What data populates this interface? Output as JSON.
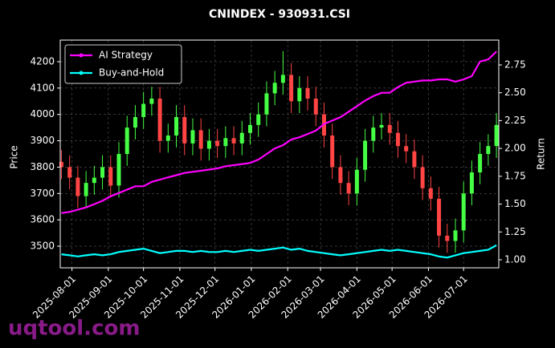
{
  "chart_data": {
    "type": "candlestick",
    "title": "CNINDEX - 930931.CSI",
    "ylabel": "Price",
    "y2label": "Return",
    "watermark": "uqtool.com",
    "up_color": "#44ff44",
    "down_color": "#ff4444",
    "grid": true,
    "legend": "upper left",
    "x": [
      "2025-07-23",
      "2025-07-30",
      "2025-08-06",
      "2025-08-13",
      "2025-08-20",
      "2025-08-27",
      "2025-09-03",
      "2025-09-10",
      "2025-09-17",
      "2025-09-24",
      "2025-10-01",
      "2025-10-08",
      "2025-10-15",
      "2025-10-22",
      "2025-10-29",
      "2025-11-05",
      "2025-11-12",
      "2025-11-19",
      "2025-11-26",
      "2025-12-03",
      "2025-12-10",
      "2025-12-17",
      "2025-12-24",
      "2025-12-31",
      "2026-01-07",
      "2026-01-14",
      "2026-01-21",
      "2026-01-28",
      "2026-02-04",
      "2026-02-11",
      "2026-02-18",
      "2026-02-25",
      "2026-03-04",
      "2026-03-11",
      "2026-03-18",
      "2026-03-25",
      "2026-04-01",
      "2026-04-08",
      "2026-04-15",
      "2026-04-22",
      "2026-04-29",
      "2026-05-06",
      "2026-05-13",
      "2026-05-20",
      "2026-05-27",
      "2026-06-03",
      "2026-06-10",
      "2026-06-17",
      "2026-06-24",
      "2026-07-01",
      "2026-07-08",
      "2026-07-15",
      "2026-07-22",
      "2026-07-29"
    ],
    "open": [
      3820,
      3800,
      3760,
      3690,
      3740,
      3760,
      3800,
      3730,
      3850,
      3950,
      3990,
      4040,
      4060,
      3900,
      3920,
      3990,
      3890,
      3940,
      3870,
      3900,
      3880,
      3910,
      3890,
      3930,
      3960,
      4000,
      4080,
      4120,
      4150,
      4050,
      4100,
      4060,
      4000,
      3920,
      3800,
      3740,
      3700,
      3790,
      3900,
      3950,
      3960,
      3930,
      3880,
      3860,
      3800,
      3720,
      3680,
      3540,
      3520,
      3560,
      3700,
      3780,
      3850,
      3880
    ],
    "high": [
      3865,
      3845,
      3805,
      3785,
      3805,
      3845,
      3845,
      3895,
      3995,
      4035,
      4085,
      4105,
      4105,
      3965,
      4035,
      4035,
      3985,
      3985,
      3945,
      3945,
      3955,
      3955,
      3975,
      4005,
      4045,
      4125,
      4165,
      4240,
      4195,
      4145,
      4145,
      4105,
      4045,
      3965,
      3845,
      3785,
      3835,
      3945,
      3995,
      4005,
      4005,
      3975,
      3925,
      3905,
      3845,
      3765,
      3725,
      3585,
      3605,
      3745,
      3825,
      3895,
      3925,
      4005
    ],
    "low": [
      3755,
      3715,
      3645,
      3645,
      3695,
      3715,
      3685,
      3685,
      3805,
      3905,
      3945,
      3995,
      3855,
      3855,
      3875,
      3845,
      3845,
      3825,
      3825,
      3835,
      3835,
      3845,
      3845,
      3885,
      3915,
      3955,
      4035,
      4075,
      4005,
      4005,
      4015,
      3955,
      3875,
      3755,
      3695,
      3655,
      3655,
      3745,
      3855,
      3905,
      3885,
      3835,
      3815,
      3755,
      3675,
      3635,
      3495,
      3475,
      3475,
      3515,
      3655,
      3735,
      3805,
      3835
    ],
    "close": [
      3800,
      3760,
      3690,
      3740,
      3760,
      3800,
      3730,
      3850,
      3950,
      3990,
      4040,
      4060,
      3900,
      3920,
      3990,
      3890,
      3940,
      3870,
      3900,
      3880,
      3910,
      3890,
      3930,
      3960,
      4000,
      4080,
      4120,
      4150,
      4050,
      4100,
      4060,
      4000,
      3920,
      3800,
      3740,
      3700,
      3790,
      3900,
      3950,
      3960,
      3930,
      3880,
      3860,
      3800,
      3720,
      3680,
      3540,
      3520,
      3560,
      3700,
      3780,
      3850,
      3880,
      3960
    ],
    "series": [
      {
        "name": "AI Strategy",
        "color": "#ff00ff",
        "axis": "y2",
        "values": [
          1.42,
          1.43,
          1.45,
          1.47,
          1.5,
          1.53,
          1.57,
          1.6,
          1.63,
          1.66,
          1.66,
          1.7,
          1.72,
          1.74,
          1.76,
          1.78,
          1.79,
          1.8,
          1.81,
          1.82,
          1.84,
          1.85,
          1.86,
          1.87,
          1.9,
          1.95,
          2.0,
          2.03,
          2.08,
          2.1,
          2.13,
          2.16,
          2.22,
          2.25,
          2.28,
          2.33,
          2.38,
          2.43,
          2.47,
          2.5,
          2.5,
          2.55,
          2.59,
          2.6,
          2.61,
          2.61,
          2.62,
          2.62,
          2.6,
          2.62,
          2.65,
          2.78,
          2.8,
          2.87
        ]
      },
      {
        "name": "Buy-and-Hold",
        "color": "#00ffff",
        "axis": "y2",
        "values": [
          1.05,
          1.04,
          1.03,
          1.04,
          1.05,
          1.04,
          1.05,
          1.07,
          1.08,
          1.09,
          1.1,
          1.08,
          1.06,
          1.07,
          1.08,
          1.08,
          1.07,
          1.08,
          1.07,
          1.07,
          1.08,
          1.07,
          1.08,
          1.09,
          1.08,
          1.09,
          1.1,
          1.11,
          1.09,
          1.1,
          1.08,
          1.07,
          1.06,
          1.05,
          1.04,
          1.05,
          1.06,
          1.07,
          1.08,
          1.09,
          1.08,
          1.09,
          1.08,
          1.07,
          1.06,
          1.05,
          1.03,
          1.02,
          1.04,
          1.06,
          1.07,
          1.08,
          1.09,
          1.13
        ]
      }
    ],
    "xlim": [
      "2025-07-22",
      "2026-07-31"
    ],
    "xticks": [
      "2025-08-01",
      "2025-09-01",
      "2025-10-01",
      "2025-11-01",
      "2025-12-01",
      "2026-01-01",
      "2026-02-01",
      "2026-03-01",
      "2026-04-01",
      "2026-05-01",
      "2026-06-01",
      "2026-07-01"
    ],
    "ylim": [
      3418,
      4282
    ],
    "yticks": [
      3500,
      3600,
      3700,
      3800,
      3900,
      4000,
      4100,
      4200
    ],
    "y2lim": [
      0.928,
      2.973
    ],
    "y2ticks": [
      {
        "value": 1,
        "label": "1.00"
      },
      1.25,
      {
        "value": 1.5,
        "label": "1.50"
      },
      1.75,
      {
        "value": 2,
        "label": "2.00"
      },
      2.25,
      {
        "value": 2.5,
        "label": "2.50"
      },
      2.75
    ]
  }
}
